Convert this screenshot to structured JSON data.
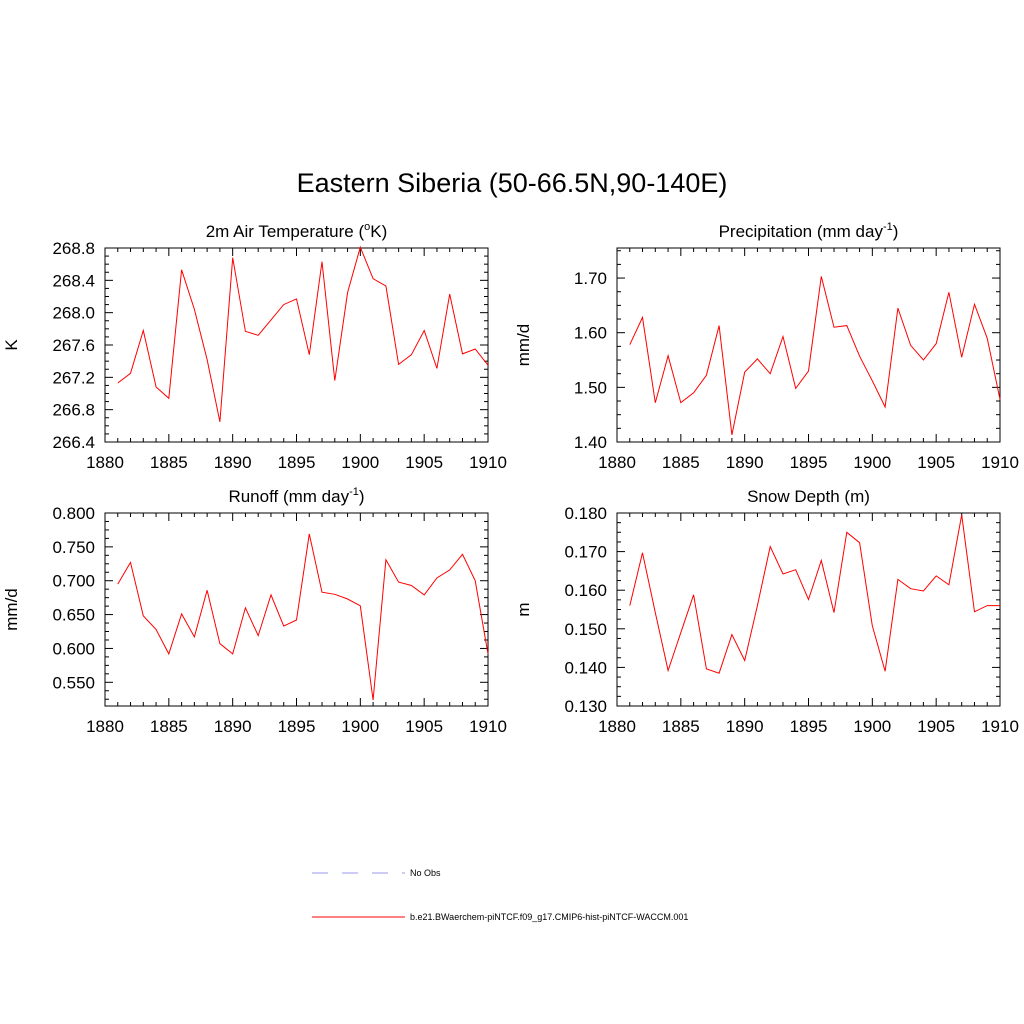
{
  "figure": {
    "title": "Eastern Siberia (50-66.5N,90-140E)"
  },
  "colors": {
    "model_line": "#ff0000",
    "obs_line": "#9a9ae8",
    "axis": "#000000"
  },
  "chart_data": [
    {
      "type": "line",
      "title_main": "2m Air Temperature (",
      "title_sup": "o",
      "title_end": "K)",
      "ylabel": "K",
      "xlim": [
        1880,
        1910
      ],
      "ylim": [
        266.4,
        268.8
      ],
      "xticks": [
        1880,
        1885,
        1890,
        1895,
        1900,
        1905,
        1910
      ],
      "yticks": [
        266.4,
        266.8,
        267.2,
        267.6,
        268.0,
        268.4,
        268.8
      ],
      "ytick_labels": [
        "266.4",
        "266.8",
        "267.2",
        "267.6",
        "268.0",
        "268.4",
        "268.8"
      ],
      "series": [
        {
          "x": [
            1881,
            1882,
            1883,
            1884,
            1885,
            1886,
            1887,
            1888,
            1889,
            1890,
            1891,
            1892,
            1893,
            1894,
            1895,
            1896,
            1897,
            1898,
            1899,
            1900,
            1901,
            1902,
            1903,
            1904,
            1905,
            1906,
            1907,
            1908,
            1909,
            1910
          ],
          "values": [
            267.13,
            267.25,
            267.78,
            267.08,
            266.94,
            268.53,
            268.04,
            267.42,
            266.65,
            268.68,
            267.77,
            267.72,
            267.91,
            268.1,
            268.17,
            267.48,
            268.63,
            267.16,
            268.25,
            268.81,
            268.42,
            268.33,
            267.36,
            267.48,
            267.78,
            267.31,
            268.23,
            267.49,
            267.55,
            267.35
          ]
        }
      ]
    },
    {
      "type": "line",
      "title_main": "Precipitation (mm day",
      "title_sup": "-1",
      "title_end": ")",
      "ylabel": "mm/d",
      "xlim": [
        1880,
        1910
      ],
      "ylim": [
        1.4,
        1.755
      ],
      "xticks": [
        1880,
        1885,
        1890,
        1895,
        1900,
        1905,
        1910
      ],
      "yticks": [
        1.4,
        1.5,
        1.6,
        1.7
      ],
      "ytick_labels": [
        "1.40",
        "1.50",
        "1.60",
        "1.70"
      ],
      "series": [
        {
          "x": [
            1881,
            1882,
            1883,
            1884,
            1885,
            1886,
            1887,
            1888,
            1889,
            1890,
            1891,
            1892,
            1893,
            1894,
            1895,
            1896,
            1897,
            1898,
            1899,
            1900,
            1901,
            1902,
            1903,
            1904,
            1905,
            1906,
            1907,
            1908,
            1909,
            1910
          ],
          "values": [
            1.578,
            1.628,
            1.472,
            1.558,
            1.472,
            1.49,
            1.522,
            1.613,
            1.413,
            1.528,
            1.552,
            1.525,
            1.593,
            1.498,
            1.53,
            1.703,
            1.61,
            1.613,
            1.557,
            1.512,
            1.464,
            1.645,
            1.577,
            1.55,
            1.58,
            1.674,
            1.555,
            1.652,
            1.59,
            1.478
          ]
        }
      ]
    },
    {
      "type": "line",
      "title_main": "Runoff (mm day",
      "title_sup": "-1",
      "title_end": ")",
      "ylabel": "mm/d",
      "xlim": [
        1880,
        1910
      ],
      "ylim": [
        0.515,
        0.8
      ],
      "xticks": [
        1880,
        1885,
        1890,
        1895,
        1900,
        1905,
        1910
      ],
      "yticks": [
        0.55,
        0.6,
        0.65,
        0.7,
        0.75,
        0.8
      ],
      "ytick_labels": [
        "0.550",
        "0.600",
        "0.650",
        "0.700",
        "0.750",
        "0.800"
      ],
      "series": [
        {
          "x": [
            1881,
            1882,
            1883,
            1884,
            1885,
            1886,
            1887,
            1888,
            1889,
            1890,
            1891,
            1892,
            1893,
            1894,
            1895,
            1896,
            1897,
            1898,
            1899,
            1900,
            1901,
            1902,
            1903,
            1904,
            1905,
            1906,
            1907,
            1908,
            1909,
            1910
          ],
          "values": [
            0.695,
            0.727,
            0.648,
            0.628,
            0.592,
            0.651,
            0.617,
            0.686,
            0.607,
            0.592,
            0.66,
            0.619,
            0.679,
            0.633,
            0.642,
            0.769,
            0.683,
            0.68,
            0.673,
            0.663,
            0.524,
            0.731,
            0.698,
            0.693,
            0.679,
            0.704,
            0.716,
            0.739,
            0.7,
            0.592
          ]
        }
      ]
    },
    {
      "type": "line",
      "title_main": "Snow Depth (m)",
      "title_sup": "",
      "title_end": "",
      "ylabel": "m",
      "xlim": [
        1880,
        1910
      ],
      "ylim": [
        0.13,
        0.18
      ],
      "xticks": [
        1880,
        1885,
        1890,
        1895,
        1900,
        1905,
        1910
      ],
      "yticks": [
        0.13,
        0.14,
        0.15,
        0.16,
        0.17,
        0.18
      ],
      "ytick_labels": [
        "0.130",
        "0.140",
        "0.150",
        "0.160",
        "0.170",
        "0.180"
      ],
      "series": [
        {
          "x": [
            1881,
            1882,
            1883,
            1884,
            1885,
            1886,
            1887,
            1888,
            1889,
            1890,
            1891,
            1892,
            1893,
            1894,
            1895,
            1896,
            1897,
            1898,
            1899,
            1900,
            1901,
            1902,
            1903,
            1904,
            1905,
            1906,
            1907,
            1908,
            1909,
            1910
          ],
          "values": [
            0.156,
            0.1697,
            0.1542,
            0.1392,
            0.149,
            0.1588,
            0.1396,
            0.1385,
            0.1485,
            0.1418,
            0.156,
            0.1713,
            0.1642,
            0.1653,
            0.1576,
            0.1677,
            0.1542,
            0.175,
            0.1723,
            0.1508,
            0.139,
            0.1628,
            0.1604,
            0.1598,
            0.1637,
            0.1614,
            0.1795,
            0.1544,
            0.156,
            0.156
          ]
        }
      ]
    }
  ],
  "legend": {
    "items": [
      {
        "label": "No Obs",
        "style": "dashed"
      },
      {
        "label": "b.e21.BWaerchem-piNTCF.f09_g17.CMIP6-hist-piNTCF-WACCM.001",
        "style": "solid"
      }
    ]
  }
}
